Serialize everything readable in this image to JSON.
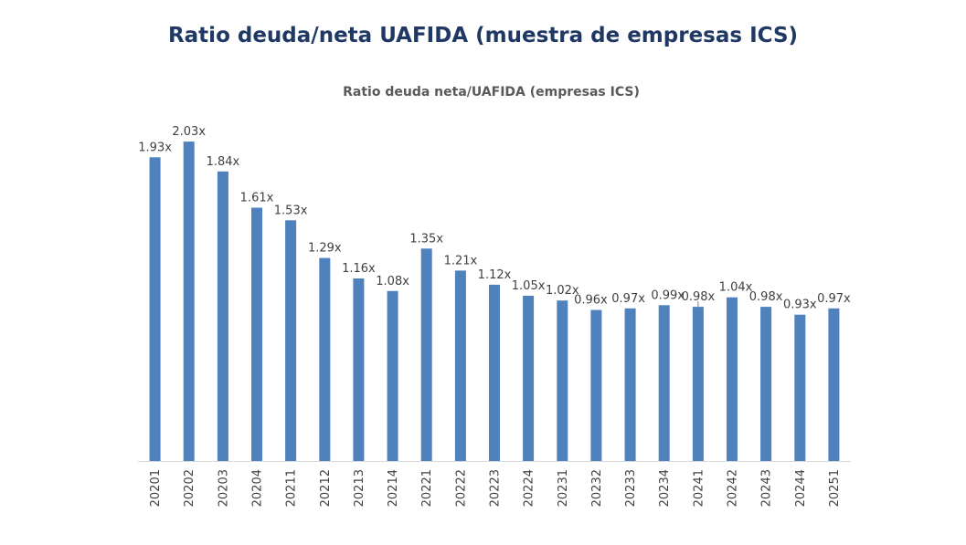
{
  "page": {
    "title": "Ratio deuda/neta UAFIDA (muestra de empresas ICS)"
  },
  "chart_data": {
    "type": "bar",
    "title": "Ratio deuda neta/UAFIDA (empresas ICS)",
    "xlabel": "",
    "ylabel": "",
    "ylim": [
      0,
      2.1
    ],
    "grid": false,
    "legend": "none",
    "value_suffix": "x",
    "categories": [
      "20201",
      "20202",
      "20203",
      "20204",
      "20211",
      "20212",
      "20213",
      "20214",
      "20221",
      "20222",
      "20223",
      "20224",
      "20231",
      "20232",
      "20233",
      "20234",
      "20241",
      "20242",
      "20243",
      "20244",
      "20251"
    ],
    "values": [
      1.93,
      2.03,
      1.84,
      1.61,
      1.53,
      1.29,
      1.16,
      1.08,
      1.35,
      1.21,
      1.12,
      1.05,
      1.02,
      0.96,
      0.97,
      0.99,
      0.98,
      1.04,
      0.98,
      0.93,
      0.97
    ],
    "data_labels": [
      "1.93x",
      "2.03x",
      "1.84x",
      "1.61x",
      "1.53x",
      "1.29x",
      "1.16x",
      "1.08x",
      "1.35x",
      "1.21x",
      "1.12x",
      "1.05x",
      "1.02x",
      "0.96x",
      "0.97x",
      "0.99x",
      "0.98x",
      "1.04x",
      "0.98x",
      "0.93x",
      "0.97x"
    ],
    "colors": {
      "bar": "#4f81bd",
      "axis": "#d9d9d9",
      "leader": "#7f7f7f"
    }
  }
}
